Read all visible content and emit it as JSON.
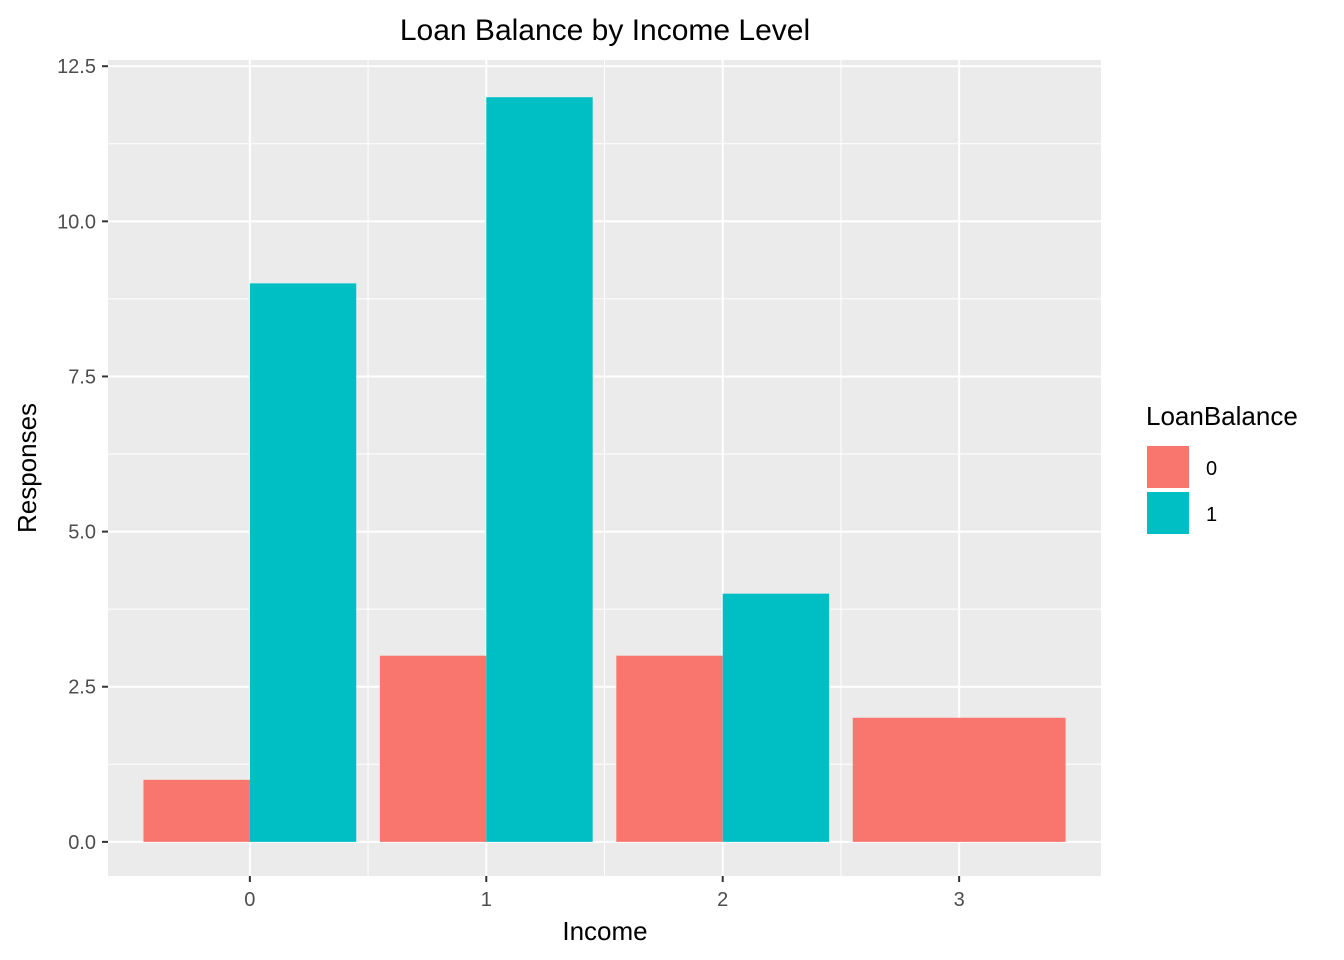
{
  "chart_data": {
    "type": "bar",
    "title": "Loan Balance by Income Level",
    "xlabel": "Income",
    "ylabel": "Responses",
    "categories": [
      "0",
      "1",
      "2",
      "3"
    ],
    "ylim": [
      -0.55,
      12.6
    ],
    "yticks": [
      "0.0",
      "2.5",
      "5.0",
      "7.5",
      "10.0",
      "12.5"
    ],
    "ytick_values": [
      0,
      2.5,
      5,
      7.5,
      10,
      12.5
    ],
    "grid": true,
    "legend": {
      "title": "LoanBalance",
      "placement": "right",
      "entries": [
        {
          "label": "0",
          "color": "#F8766D"
        },
        {
          "label": "1",
          "color": "#00BFC4"
        }
      ]
    },
    "series": [
      {
        "name": "0",
        "color": "#F8766D",
        "values": [
          1,
          3,
          3,
          2
        ]
      },
      {
        "name": "1",
        "color": "#00BFC4",
        "values": [
          9,
          12,
          4,
          null
        ]
      }
    ],
    "panel_background": "#EBEBEB",
    "grid_color": "#FFFFFF"
  }
}
